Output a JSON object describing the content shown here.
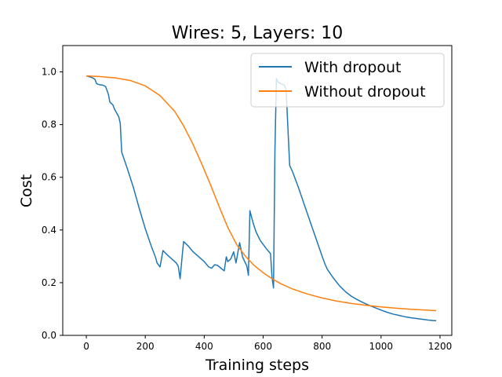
{
  "chart_data": {
    "type": "line",
    "title": "Wires: 5, Layers: 10",
    "xlabel": "Training steps",
    "ylabel": "Cost",
    "xlim": [
      -80,
      1240
    ],
    "ylim": [
      0.0,
      1.1
    ],
    "xticks": [
      0,
      200,
      400,
      600,
      800,
      1000,
      1200
    ],
    "yticks": [
      0.0,
      0.2,
      0.4,
      0.6,
      0.8,
      1.0
    ],
    "xtick_labels": [
      "0",
      "200",
      "400",
      "600",
      "800",
      "1000",
      "1200"
    ],
    "ytick_labels": [
      "0.0",
      "0.2",
      "0.4",
      "0.6",
      "0.8",
      "1.0"
    ],
    "grid": false,
    "legend_position": "top-right",
    "series": [
      {
        "name": "With dropout",
        "color": "#1f77b4",
        "points": [
          [
            0,
            0.985
          ],
          [
            10,
            0.982
          ],
          [
            20,
            0.978
          ],
          [
            25,
            0.975
          ],
          [
            30,
            0.97
          ],
          [
            35,
            0.955
          ],
          [
            40,
            0.953
          ],
          [
            50,
            0.95
          ],
          [
            55,
            0.95
          ],
          [
            65,
            0.945
          ],
          [
            70,
            0.93
          ],
          [
            75,
            0.915
          ],
          [
            80,
            0.885
          ],
          [
            85,
            0.88
          ],
          [
            90,
            0.875
          ],
          [
            95,
            0.86
          ],
          [
            100,
            0.85
          ],
          [
            105,
            0.84
          ],
          [
            110,
            0.83
          ],
          [
            115,
            0.805
          ],
          [
            120,
            0.695
          ],
          [
            140,
            0.63
          ],
          [
            160,
            0.56
          ],
          [
            180,
            0.48
          ],
          [
            200,
            0.405
          ],
          [
            220,
            0.34
          ],
          [
            235,
            0.295
          ],
          [
            240,
            0.275
          ],
          [
            250,
            0.26
          ],
          [
            260,
            0.322
          ],
          [
            275,
            0.305
          ],
          [
            290,
            0.29
          ],
          [
            305,
            0.275
          ],
          [
            312,
            0.262
          ],
          [
            318,
            0.215
          ],
          [
            325,
            0.3
          ],
          [
            330,
            0.356
          ],
          [
            345,
            0.34
          ],
          [
            360,
            0.32
          ],
          [
            380,
            0.3
          ],
          [
            400,
            0.28
          ],
          [
            415,
            0.26
          ],
          [
            425,
            0.255
          ],
          [
            435,
            0.268
          ],
          [
            445,
            0.266
          ],
          [
            460,
            0.252
          ],
          [
            468,
            0.245
          ],
          [
            475,
            0.298
          ],
          [
            480,
            0.28
          ],
          [
            490,
            0.29
          ],
          [
            500,
            0.317
          ],
          [
            508,
            0.275
          ],
          [
            520,
            0.352
          ],
          [
            530,
            0.298
          ],
          [
            545,
            0.262
          ],
          [
            550,
            0.228
          ],
          [
            555,
            0.473
          ],
          [
            565,
            0.43
          ],
          [
            575,
            0.395
          ],
          [
            590,
            0.36
          ],
          [
            610,
            0.33
          ],
          [
            625,
            0.31
          ],
          [
            630,
            0.22
          ],
          [
            635,
            0.18
          ],
          [
            640,
            0.7
          ],
          [
            645,
            0.975
          ],
          [
            650,
            0.962
          ],
          [
            660,
            0.955
          ],
          [
            672,
            0.95
          ],
          [
            678,
            0.93
          ],
          [
            690,
            0.645
          ],
          [
            700,
            0.62
          ],
          [
            720,
            0.56
          ],
          [
            740,
            0.495
          ],
          [
            760,
            0.43
          ],
          [
            780,
            0.365
          ],
          [
            800,
            0.3
          ],
          [
            810,
            0.27
          ],
          [
            818,
            0.25
          ],
          [
            840,
            0.215
          ],
          [
            860,
            0.187
          ],
          [
            880,
            0.165
          ],
          [
            900,
            0.148
          ],
          [
            920,
            0.135
          ],
          [
            940,
            0.124
          ],
          [
            960,
            0.114
          ],
          [
            980,
            0.105
          ],
          [
            1000,
            0.096
          ],
          [
            1020,
            0.088
          ],
          [
            1040,
            0.081
          ],
          [
            1060,
            0.076
          ],
          [
            1080,
            0.071
          ],
          [
            1100,
            0.067
          ],
          [
            1120,
            0.064
          ],
          [
            1140,
            0.061
          ],
          [
            1160,
            0.058
          ],
          [
            1180,
            0.056
          ],
          [
            1187,
            0.056
          ]
        ]
      },
      {
        "name": "Without dropout",
        "color": "#ff7f0e",
        "points": [
          [
            0,
            0.985
          ],
          [
            50,
            0.982
          ],
          [
            100,
            0.977
          ],
          [
            150,
            0.967
          ],
          [
            200,
            0.947
          ],
          [
            250,
            0.91
          ],
          [
            300,
            0.85
          ],
          [
            330,
            0.795
          ],
          [
            360,
            0.73
          ],
          [
            390,
            0.655
          ],
          [
            420,
            0.575
          ],
          [
            450,
            0.49
          ],
          [
            480,
            0.41
          ],
          [
            510,
            0.345
          ],
          [
            540,
            0.3
          ],
          [
            570,
            0.265
          ],
          [
            600,
            0.238
          ],
          [
            630,
            0.215
          ],
          [
            660,
            0.196
          ],
          [
            700,
            0.176
          ],
          [
            750,
            0.157
          ],
          [
            800,
            0.142
          ],
          [
            850,
            0.13
          ],
          [
            900,
            0.121
          ],
          [
            950,
            0.114
          ],
          [
            1000,
            0.108
          ],
          [
            1050,
            0.103
          ],
          [
            1100,
            0.099
          ],
          [
            1150,
            0.096
          ],
          [
            1187,
            0.094
          ]
        ]
      }
    ]
  }
}
